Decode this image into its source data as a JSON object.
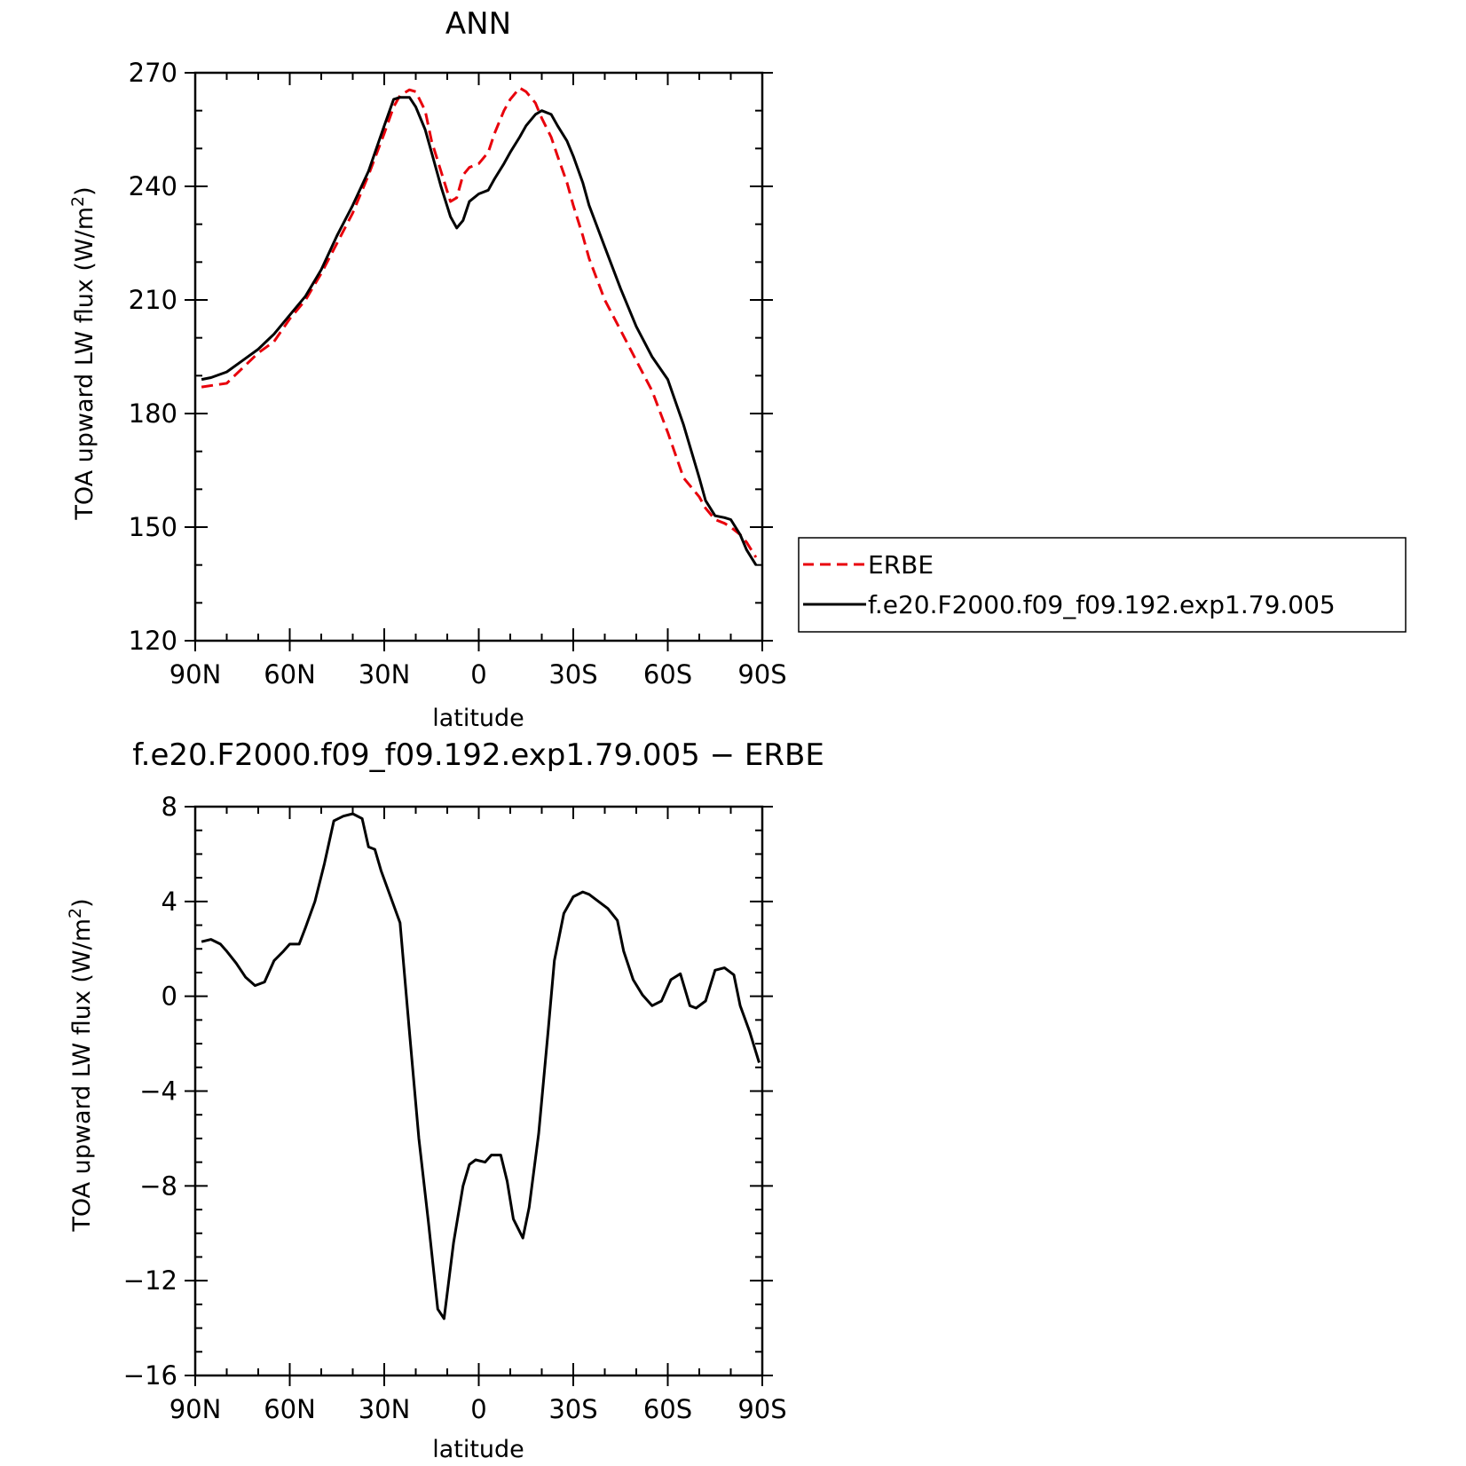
{
  "chart_data": [
    {
      "type": "line",
      "title": "ANN",
      "xlabel": "latitude",
      "ylabel": "TOA upward LW flux (W/m",
      "ylabel_sup": "2",
      "ylabel_close": ")",
      "xlim": [
        90,
        -90
      ],
      "ylim": [
        120,
        270
      ],
      "x_ticks": [
        90,
        60,
        30,
        0,
        -30,
        -60,
        -90
      ],
      "x_tick_labels": [
        "90N",
        "60N",
        "30N",
        "0",
        "30S",
        "60S",
        "90S"
      ],
      "y_ticks": [
        120,
        150,
        180,
        210,
        240,
        270
      ],
      "y_tick_labels": [
        "120",
        "150",
        "180",
        "210",
        "240",
        "270"
      ],
      "legend": {
        "position": "right"
      },
      "series": [
        {
          "name": "ERBE",
          "color": "#e8000b",
          "dash": "dashed",
          "x": [
            88,
            80,
            75,
            70,
            65,
            60,
            55,
            50,
            45,
            40,
            35,
            30,
            27,
            25,
            22,
            20,
            17,
            15,
            12,
            9,
            7,
            5,
            3,
            0,
            -3,
            -5,
            -8,
            -10,
            -13,
            -15,
            -18,
            -20,
            -23,
            -25,
            -28,
            -30,
            -33,
            -35,
            -40,
            -45,
            -50,
            -55,
            -60,
            -65,
            -70,
            -72,
            -75,
            -78,
            -80,
            -83,
            -85,
            -88
          ],
          "y": [
            187,
            188,
            192,
            196,
            199,
            205,
            210,
            217,
            225,
            233,
            243,
            254,
            261,
            264,
            265.5,
            265,
            260,
            252,
            244,
            236,
            237,
            243,
            245,
            246,
            249,
            254,
            260,
            263,
            266,
            265,
            262,
            258,
            253,
            248,
            241,
            235,
            227,
            221,
            210,
            202,
            194,
            186,
            175,
            163,
            158,
            155,
            152,
            151,
            150,
            148,
            146,
            142
          ]
        },
        {
          "name": "f.e20.F2000.f09_f09.192.exp1.79.005",
          "color": "#000000",
          "dash": "solid",
          "x": [
            88,
            85,
            80,
            75,
            70,
            65,
            60,
            55,
            50,
            45,
            40,
            35,
            30,
            27,
            25,
            22,
            20,
            17,
            15,
            12,
            9,
            7,
            5,
            3,
            0,
            -3,
            -5,
            -8,
            -10,
            -13,
            -15,
            -18,
            -20,
            -23,
            -25,
            -28,
            -30,
            -33,
            -35,
            -40,
            -45,
            -50,
            -55,
            -60,
            -65,
            -70,
            -72,
            -75,
            -78,
            -80,
            -83,
            -85,
            -88
          ],
          "y": [
            189,
            189.5,
            191,
            194,
            197,
            201,
            206,
            211,
            218,
            227,
            235,
            244,
            256,
            263,
            263.5,
            263.5,
            261,
            255,
            249,
            240,
            232,
            229,
            231,
            236,
            238,
            239,
            242,
            246,
            249,
            253,
            256,
            259,
            260,
            259,
            256,
            252,
            248,
            241,
            235,
            224,
            213,
            203,
            195,
            189,
            177,
            163,
            157,
            153,
            152.5,
            152,
            148,
            144,
            140
          ]
        }
      ]
    },
    {
      "type": "line",
      "title": "f.e20.F2000.f09_f09.192.exp1.79.005 − ERBE",
      "xlabel": "latitude",
      "ylabel": "TOA upward LW flux (W/m",
      "ylabel_sup": "2",
      "ylabel_close": ")",
      "xlim": [
        90,
        -90
      ],
      "ylim": [
        -16,
        8
      ],
      "x_ticks": [
        90,
        60,
        30,
        0,
        -30,
        -60,
        -90
      ],
      "x_tick_labels": [
        "90N",
        "60N",
        "30N",
        "0",
        "30S",
        "60S",
        "90S"
      ],
      "y_ticks": [
        -16,
        -12,
        -8,
        -4,
        0,
        4,
        8
      ],
      "y_tick_labels": [
        "−16",
        "−12",
        "−8",
        "−4",
        "0",
        "4",
        "8"
      ],
      "series": [
        {
          "color": "#000000",
          "dash": "solid",
          "x": [
            88,
            85,
            82,
            80,
            77,
            74,
            71,
            68,
            65,
            62,
            60,
            57,
            55,
            52,
            49,
            46,
            43,
            40,
            37,
            35,
            33,
            31,
            28,
            25,
            22,
            19,
            16,
            13,
            11,
            8,
            5,
            3,
            1,
            -2,
            -4,
            -7,
            -9,
            -11,
            -14,
            -16,
            -19,
            -22,
            -24,
            -27,
            -30,
            -33,
            -35,
            -38,
            -41,
            -44,
            -46,
            -49,
            -52,
            -55,
            -58,
            -61,
            -64,
            -67,
            -69,
            -72,
            -75,
            -78,
            -81,
            -83,
            -86,
            -89
          ],
          "y": [
            2.3,
            2.4,
            2.2,
            1.9,
            1.4,
            0.8,
            0.45,
            0.6,
            1.5,
            1.9,
            2.2,
            2.2,
            2.9,
            4.0,
            5.6,
            7.4,
            7.6,
            7.7,
            7.5,
            6.3,
            6.2,
            5.3,
            4.2,
            3.1,
            -1.5,
            -6.0,
            -9.5,
            -13.2,
            -13.6,
            -10.4,
            -8.0,
            -7.1,
            -6.9,
            -7.0,
            -6.7,
            -6.7,
            -7.8,
            -9.4,
            -10.2,
            -8.9,
            -5.8,
            -1.5,
            1.5,
            3.5,
            4.2,
            4.4,
            4.3,
            4.0,
            3.7,
            3.2,
            1.9,
            0.7,
            0.05,
            -0.4,
            -0.2,
            0.7,
            0.95,
            -0.4,
            -0.5,
            -0.2,
            1.1,
            1.2,
            0.9,
            -0.4,
            -1.5,
            -2.8
          ]
        }
      ]
    }
  ]
}
